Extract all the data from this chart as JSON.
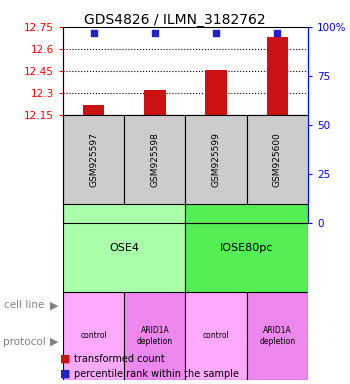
{
  "title": "GDS4826 / ILMN_3182762",
  "samples": [
    "GSM925597",
    "GSM925598",
    "GSM925599",
    "GSM925600"
  ],
  "bar_values": [
    12.22,
    12.32,
    12.46,
    12.68
  ],
  "dot_values": [
    97,
    97,
    97,
    97
  ],
  "y_min": 12.15,
  "y_max": 12.75,
  "y_ticks_left": [
    12.15,
    12.3,
    12.45,
    12.6,
    12.75
  ],
  "y_ticks_right": [
    0,
    25,
    50,
    75,
    100
  ],
  "bar_color": "#cc1111",
  "dot_color": "#2222cc",
  "cell_line_labels": [
    "OSE4",
    "IOSE80pc"
  ],
  "cell_line_colors": [
    "#aaffaa",
    "#55ee55"
  ],
  "cell_line_spans": [
    [
      0,
      2
    ],
    [
      2,
      4
    ]
  ],
  "protocol_labels": [
    "control",
    "ARID1A\ndepletion",
    "control",
    "ARID1A\ndepletion"
  ],
  "protocol_colors": [
    "#ffaaff",
    "#ee88ee",
    "#ffaaff",
    "#ee88ee"
  ],
  "legend_items": [
    "transformed count",
    "percentile rank within the sample"
  ],
  "legend_colors": [
    "#cc1111",
    "#2222cc"
  ],
  "legend_markers": [
    "s",
    "s"
  ],
  "left_label": "cell line",
  "protocol_label": "protocol",
  "sample_box_color": "#cccccc",
  "background_color": "#ffffff"
}
